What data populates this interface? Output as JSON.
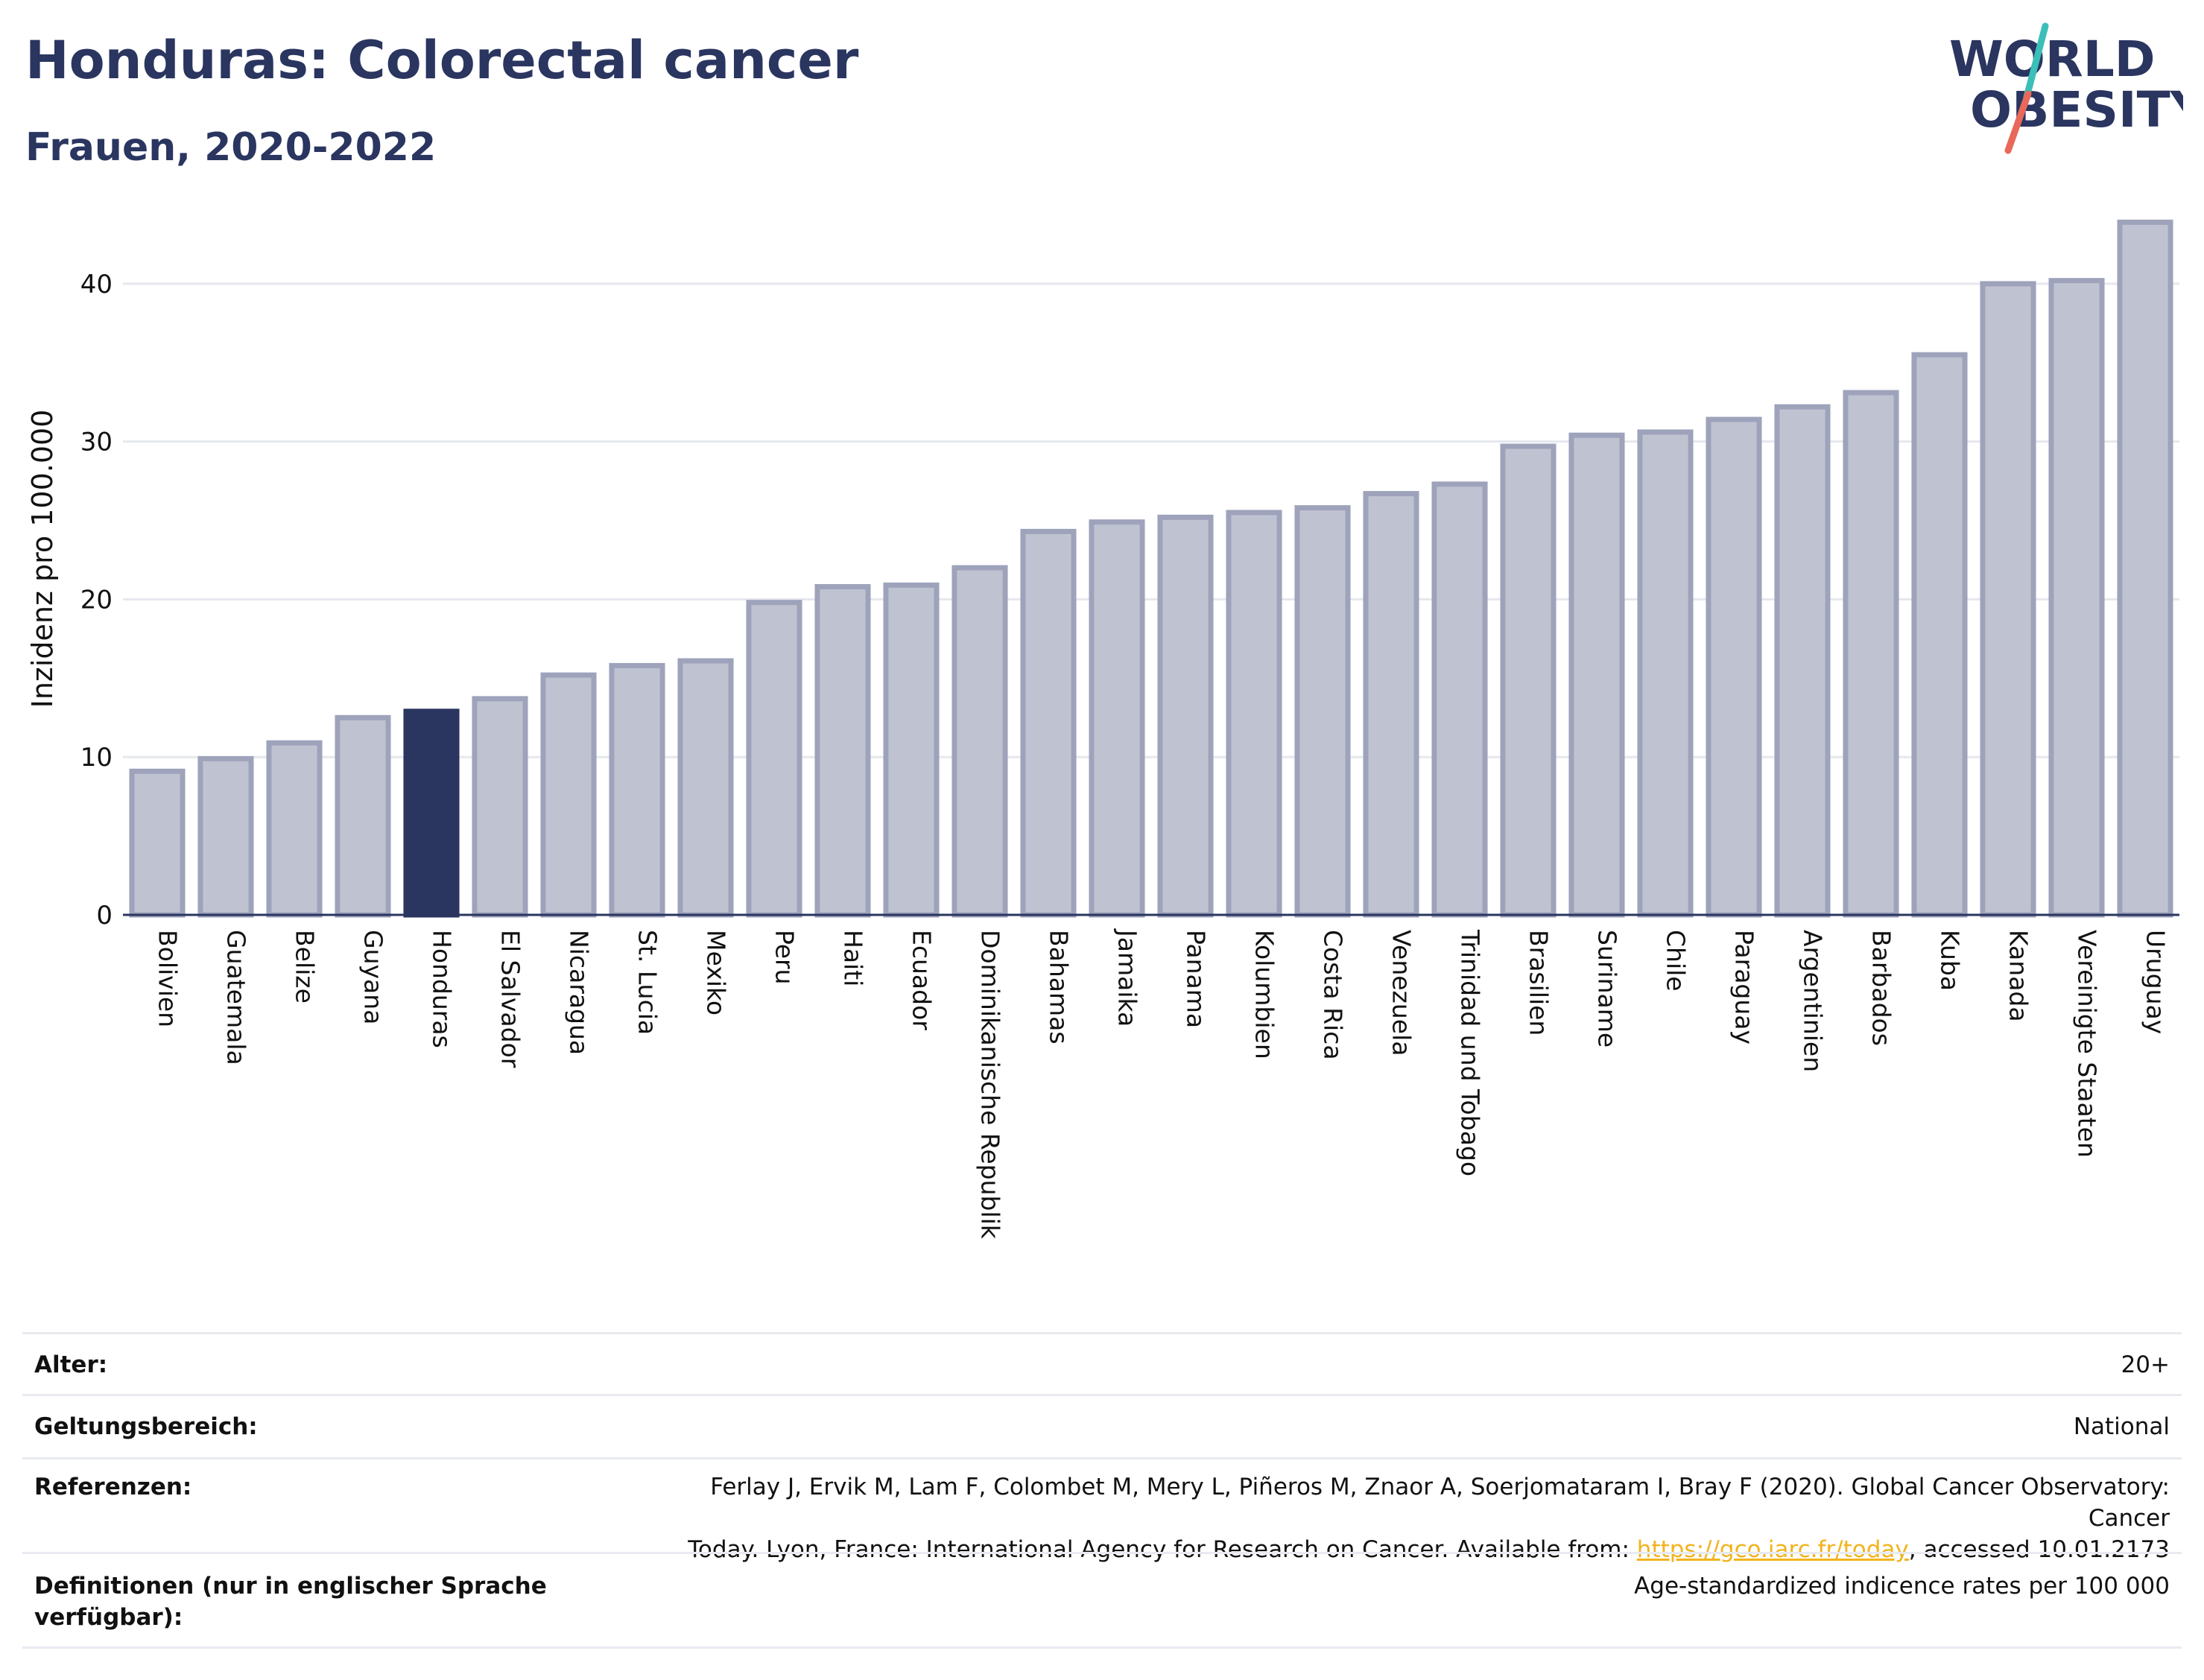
{
  "header": {
    "title": "Honduras: Colorectal cancer",
    "subtitle": "Frauen, 2020-2022"
  },
  "logo": {
    "line1": "WORLD",
    "line2": "OBESITY",
    "accent_teal": "#3bbfb8",
    "accent_red": "#e8685a"
  },
  "colors": {
    "bar": "#bfc3d1",
    "bar_stroke": "#9ea3bb",
    "highlight": "#2a3560",
    "text": "#2a3560",
    "link": "#f2b31c"
  },
  "chart_data": {
    "type": "bar",
    "ylabel": "Inzidenz pro 100.000",
    "ylim": [
      0,
      45
    ],
    "yticks": [
      0,
      10,
      20,
      30,
      40
    ],
    "grid": true,
    "highlight": "Honduras",
    "categories": [
      "Bolivien",
      "Guatemala",
      "Belize",
      "Guyana",
      "Honduras",
      "El Salvador",
      "Nicaragua",
      "St. Lucia",
      "Mexiko",
      "Peru",
      "Haiti",
      "Ecuador",
      "Dominikanische Republik",
      "Bahamas",
      "Jamaika",
      "Panama",
      "Kolumbien",
      "Costa Rica",
      "Venezuela",
      "Trinidad und Tobago",
      "Brasilien",
      "Suriname",
      "Chile",
      "Paraguay",
      "Argentinien",
      "Barbados",
      "Kuba",
      "Kanada",
      "Vereinigte Staaten",
      "Uruguay"
    ],
    "values": [
      9.1,
      9.9,
      10.9,
      12.5,
      12.9,
      13.7,
      15.2,
      15.8,
      16.1,
      19.8,
      20.8,
      20.9,
      22.0,
      24.3,
      24.9,
      25.2,
      25.5,
      25.8,
      26.7,
      27.3,
      29.7,
      30.4,
      30.6,
      31.4,
      32.2,
      33.1,
      35.5,
      40.0,
      40.2,
      43.9
    ]
  },
  "meta": {
    "age_label": "Alter:",
    "age_value": "20+",
    "scope_label": "Geltungsbereich:",
    "scope_value": "National",
    "ref_label": "Referenzen:",
    "ref_line1": "Ferlay J, Ervik M, Lam F, Colombet M, Mery L, Piñeros M, Znaor A, Soerjomataram I, Bray F (2020). Global Cancer Observatory: Cancer",
    "ref_line2_pre": "Today. Lyon, France: International Agency for Research on Cancer. Available from: ",
    "ref_link": "https://gco.iarc.fr/today",
    "ref_line2_post": ", accessed 10.01.2173",
    "def_label": "Definitionen (nur in englischer Sprache verfügbar):",
    "def_value": "Age-standardized indicence rates per 100 000"
  }
}
